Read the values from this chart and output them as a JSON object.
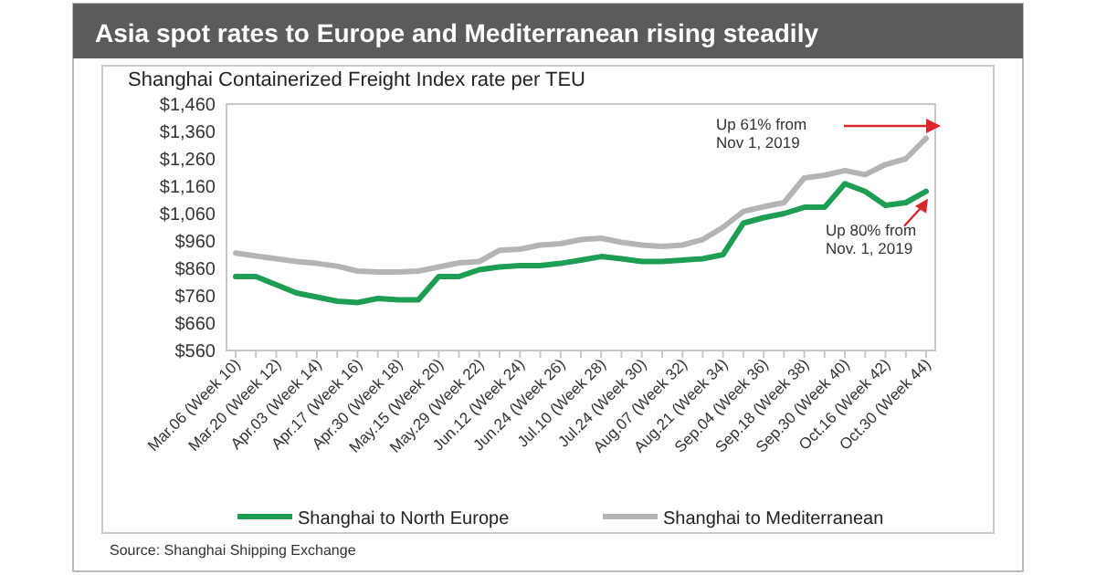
{
  "chart_data": {
    "type": "line",
    "title": "Asia spot rates to Europe and Mediterranean rising steadily",
    "subtitle": "Shanghai Containerized Freight Index rate per TEU",
    "categories": [
      "Mar.06 (Week 10)",
      null,
      "Mar.20 (Week 12)",
      null,
      "Apr.03 (Week 14)",
      null,
      "Apr.17 (Week 16)",
      null,
      "Apr.30 (Week 18)",
      null,
      "May.15 (Week 20)",
      null,
      "May.29 (Week 22)",
      null,
      "Jun.12 (Week 24)",
      null,
      "Jun.24 (Week 26)",
      null,
      "Jul.10 (Week 28)",
      null,
      "Jul.24 (Week 30)",
      null,
      "Aug.07 (Week 32)",
      null,
      "Aug.21 (Week 34)",
      null,
      "Sep.04 (Week 36)",
      null,
      "Sep.18 (Week 38)",
      null,
      "Sep.30 (Week 40)",
      null,
      "Oct.16 (Week 42)",
      null,
      "Oct.30 (Week 44)"
    ],
    "series": [
      {
        "name": "Shanghai to North Europe",
        "color": "#1e9e55",
        "values": [
          830,
          830,
          800,
          770,
          755,
          740,
          735,
          750,
          745,
          745,
          830,
          830,
          855,
          865,
          870,
          870,
          878,
          890,
          903,
          895,
          885,
          885,
          890,
          895,
          910,
          1025,
          1045,
          1060,
          1083,
          1083,
          1169,
          1141,
          1090,
          1100,
          1141
        ]
      },
      {
        "name": "Shanghai to Mediterranean",
        "color": "#b4b4b4",
        "values": [
          916,
          905,
          895,
          885,
          878,
          868,
          850,
          847,
          847,
          850,
          865,
          880,
          885,
          926,
          930,
          945,
          950,
          965,
          970,
          955,
          945,
          940,
          945,
          965,
          1010,
          1068,
          1085,
          1100,
          1190,
          1200,
          1217,
          1202,
          1239,
          1260,
          1335
        ]
      }
    ],
    "ylim": [
      560,
      1460
    ],
    "yticks": [
      {
        "value": 560,
        "label": "$560"
      },
      {
        "value": 660,
        "label": "$660"
      },
      {
        "value": 760,
        "label": "$760"
      },
      {
        "value": 860,
        "label": "$860"
      },
      {
        "value": 960,
        "label": "$960"
      },
      {
        "value": 1060,
        "label": "$1,060"
      },
      {
        "value": 1160,
        "label": "$1,160"
      },
      {
        "value": 1260,
        "label": "$1,260"
      },
      {
        "value": 1360,
        "label": "$1,360"
      },
      {
        "value": 1460,
        "label": "$1,460"
      }
    ],
    "legend": "bottom",
    "marker": "none",
    "line_style": "solid",
    "annotations": [
      "Up 61% from Nov 1, 2019",
      {
        "text": "Up 80% from Nov. 1, 2019",
        "x": "Oct.30 (Week 44)",
        "y": 1141
      },
      "Source: Shanghai Shipping Exchange"
    ]
  }
}
